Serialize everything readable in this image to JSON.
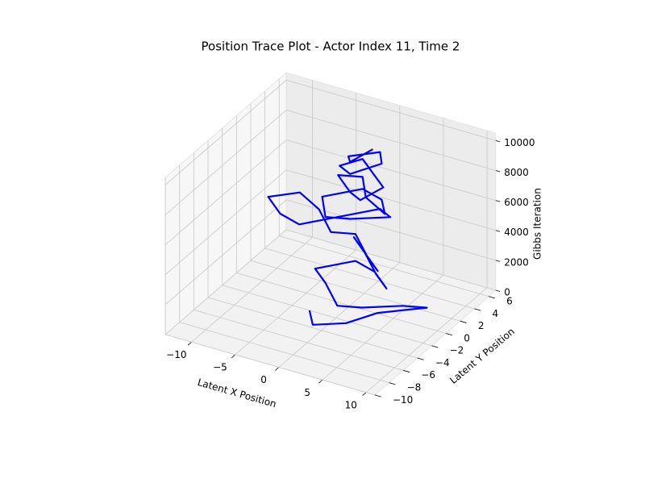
{
  "chart_data": {
    "type": "line3d",
    "title": "Position Trace Plot - Actor Index 11, Time 2",
    "xlabel": "Latent X Position",
    "ylabel": "Latent Y Position",
    "zlabel": "Gibbs Iteration",
    "color": "#0000ff",
    "grid": true,
    "xlim": [
      -13,
      11
    ],
    "ylim": [
      -10,
      7
    ],
    "zlim": [
      0,
      10500
    ],
    "xticks": [
      {
        "value": -10,
        "label": "−10"
      },
      {
        "value": -5,
        "label": "−5"
      },
      0,
      5,
      10
    ],
    "yticks": [
      {
        "value": -10,
        "label": "−10"
      },
      {
        "value": -8,
        "label": "−8"
      },
      {
        "value": -6,
        "label": "−6"
      },
      {
        "value": -4,
        "label": "−4"
      },
      {
        "value": -2,
        "label": "−2"
      },
      0,
      2,
      4,
      6
    ],
    "zticks": [
      0,
      2000,
      4000,
      6000,
      8000,
      10000
    ],
    "x": [
      -3,
      -1,
      2,
      4,
      8,
      6,
      3,
      1,
      -2,
      -4,
      -1,
      2,
      5,
      3,
      0,
      -2,
      1,
      4,
      2,
      -1,
      -3,
      -6,
      -9,
      -11,
      -8,
      -5,
      -2,
      1,
      3,
      0,
      -2,
      -4,
      -1,
      2,
      4,
      1,
      -1,
      -3,
      0,
      2,
      3,
      1,
      -1,
      -2,
      0,
      2,
      1,
      -1,
      0,
      1
    ],
    "y": [
      -2,
      -4,
      -3,
      -1,
      1,
      0,
      -2,
      -3,
      -1,
      0,
      2,
      1,
      -1,
      0,
      2,
      3,
      1,
      -1,
      0,
      2,
      1,
      3,
      4,
      2,
      0,
      -1,
      1,
      3,
      2,
      0,
      -1,
      1,
      3,
      2,
      0,
      1,
      3,
      2,
      0,
      -1,
      1,
      2,
      3,
      1,
      0,
      2,
      3,
      1,
      0,
      2
    ],
    "z": [
      0,
      200,
      400,
      600,
      800,
      1000,
      1200,
      1400,
      1600,
      1800,
      2000,
      2200,
      2400,
      2600,
      2800,
      3000,
      3200,
      3400,
      3600,
      3800,
      4000,
      4200,
      4400,
      4600,
      4800,
      5000,
      5200,
      5400,
      5600,
      5800,
      6000,
      6200,
      6400,
      6600,
      6800,
      7000,
      7200,
      7400,
      7600,
      7800,
      8000,
      8200,
      8400,
      8600,
      8800,
      9000,
      9200,
      9400,
      9600,
      9800
    ]
  }
}
